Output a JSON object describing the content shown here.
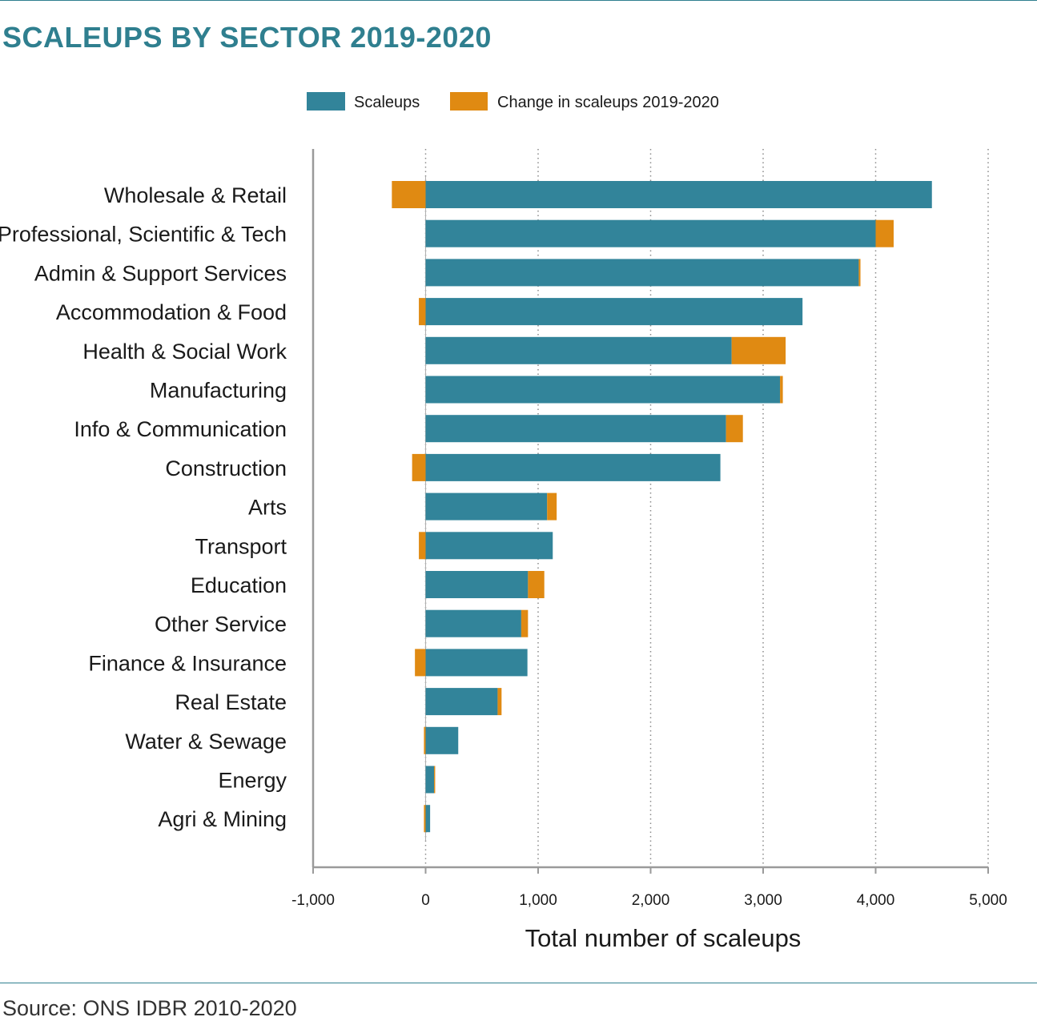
{
  "header": {
    "title": "SCALEUPS BY SECTOR 2019-2020"
  },
  "footer": {
    "source": "Source: ONS IDBR 2010-2020"
  },
  "colors": {
    "scaleups": "#32849a",
    "change": "#e08a12",
    "accent": "#2f7f8f"
  },
  "chart_data": {
    "type": "bar",
    "orientation": "horizontal",
    "stacked": true,
    "title": "SCALEUPS BY SECTOR 2019-2020",
    "xlabel": "Total number of scaleups",
    "ylabel": "",
    "xlim": [
      -1000,
      5000
    ],
    "xticks": [
      -1000,
      0,
      1000,
      2000,
      3000,
      4000,
      5000
    ],
    "xtick_labels": [
      "-1,000",
      "0",
      "1,000",
      "2,000",
      "3,000",
      "4,000",
      "5,000"
    ],
    "grid": "vertical dotted",
    "legend": "top-center",
    "categories": [
      "Wholesale & Retail",
      "Professional, Scientific & Tech",
      "Admin & Support Services",
      "Accommodation & Food",
      "Health & Social Work",
      "Manufacturing",
      "Info & Communication",
      "Construction",
      "Arts",
      "Transport",
      "Education",
      "Other Service",
      "Finance & Insurance",
      "Real Estate",
      "Water & Sewage",
      "Energy",
      "Agri & Mining"
    ],
    "series": [
      {
        "name": "Scaleups",
        "values": [
          4500,
          4000,
          3850,
          3350,
          2720,
          3150,
          2670,
          2620,
          1080,
          1130,
          910,
          850,
          905,
          640,
          290,
          75,
          40
        ]
      },
      {
        "name": "Change in scaleups 2019-2020",
        "values": [
          -300,
          160,
          15,
          -60,
          480,
          25,
          150,
          -120,
          85,
          -60,
          145,
          60,
          -95,
          35,
          -15,
          10,
          -15
        ]
      }
    ]
  }
}
